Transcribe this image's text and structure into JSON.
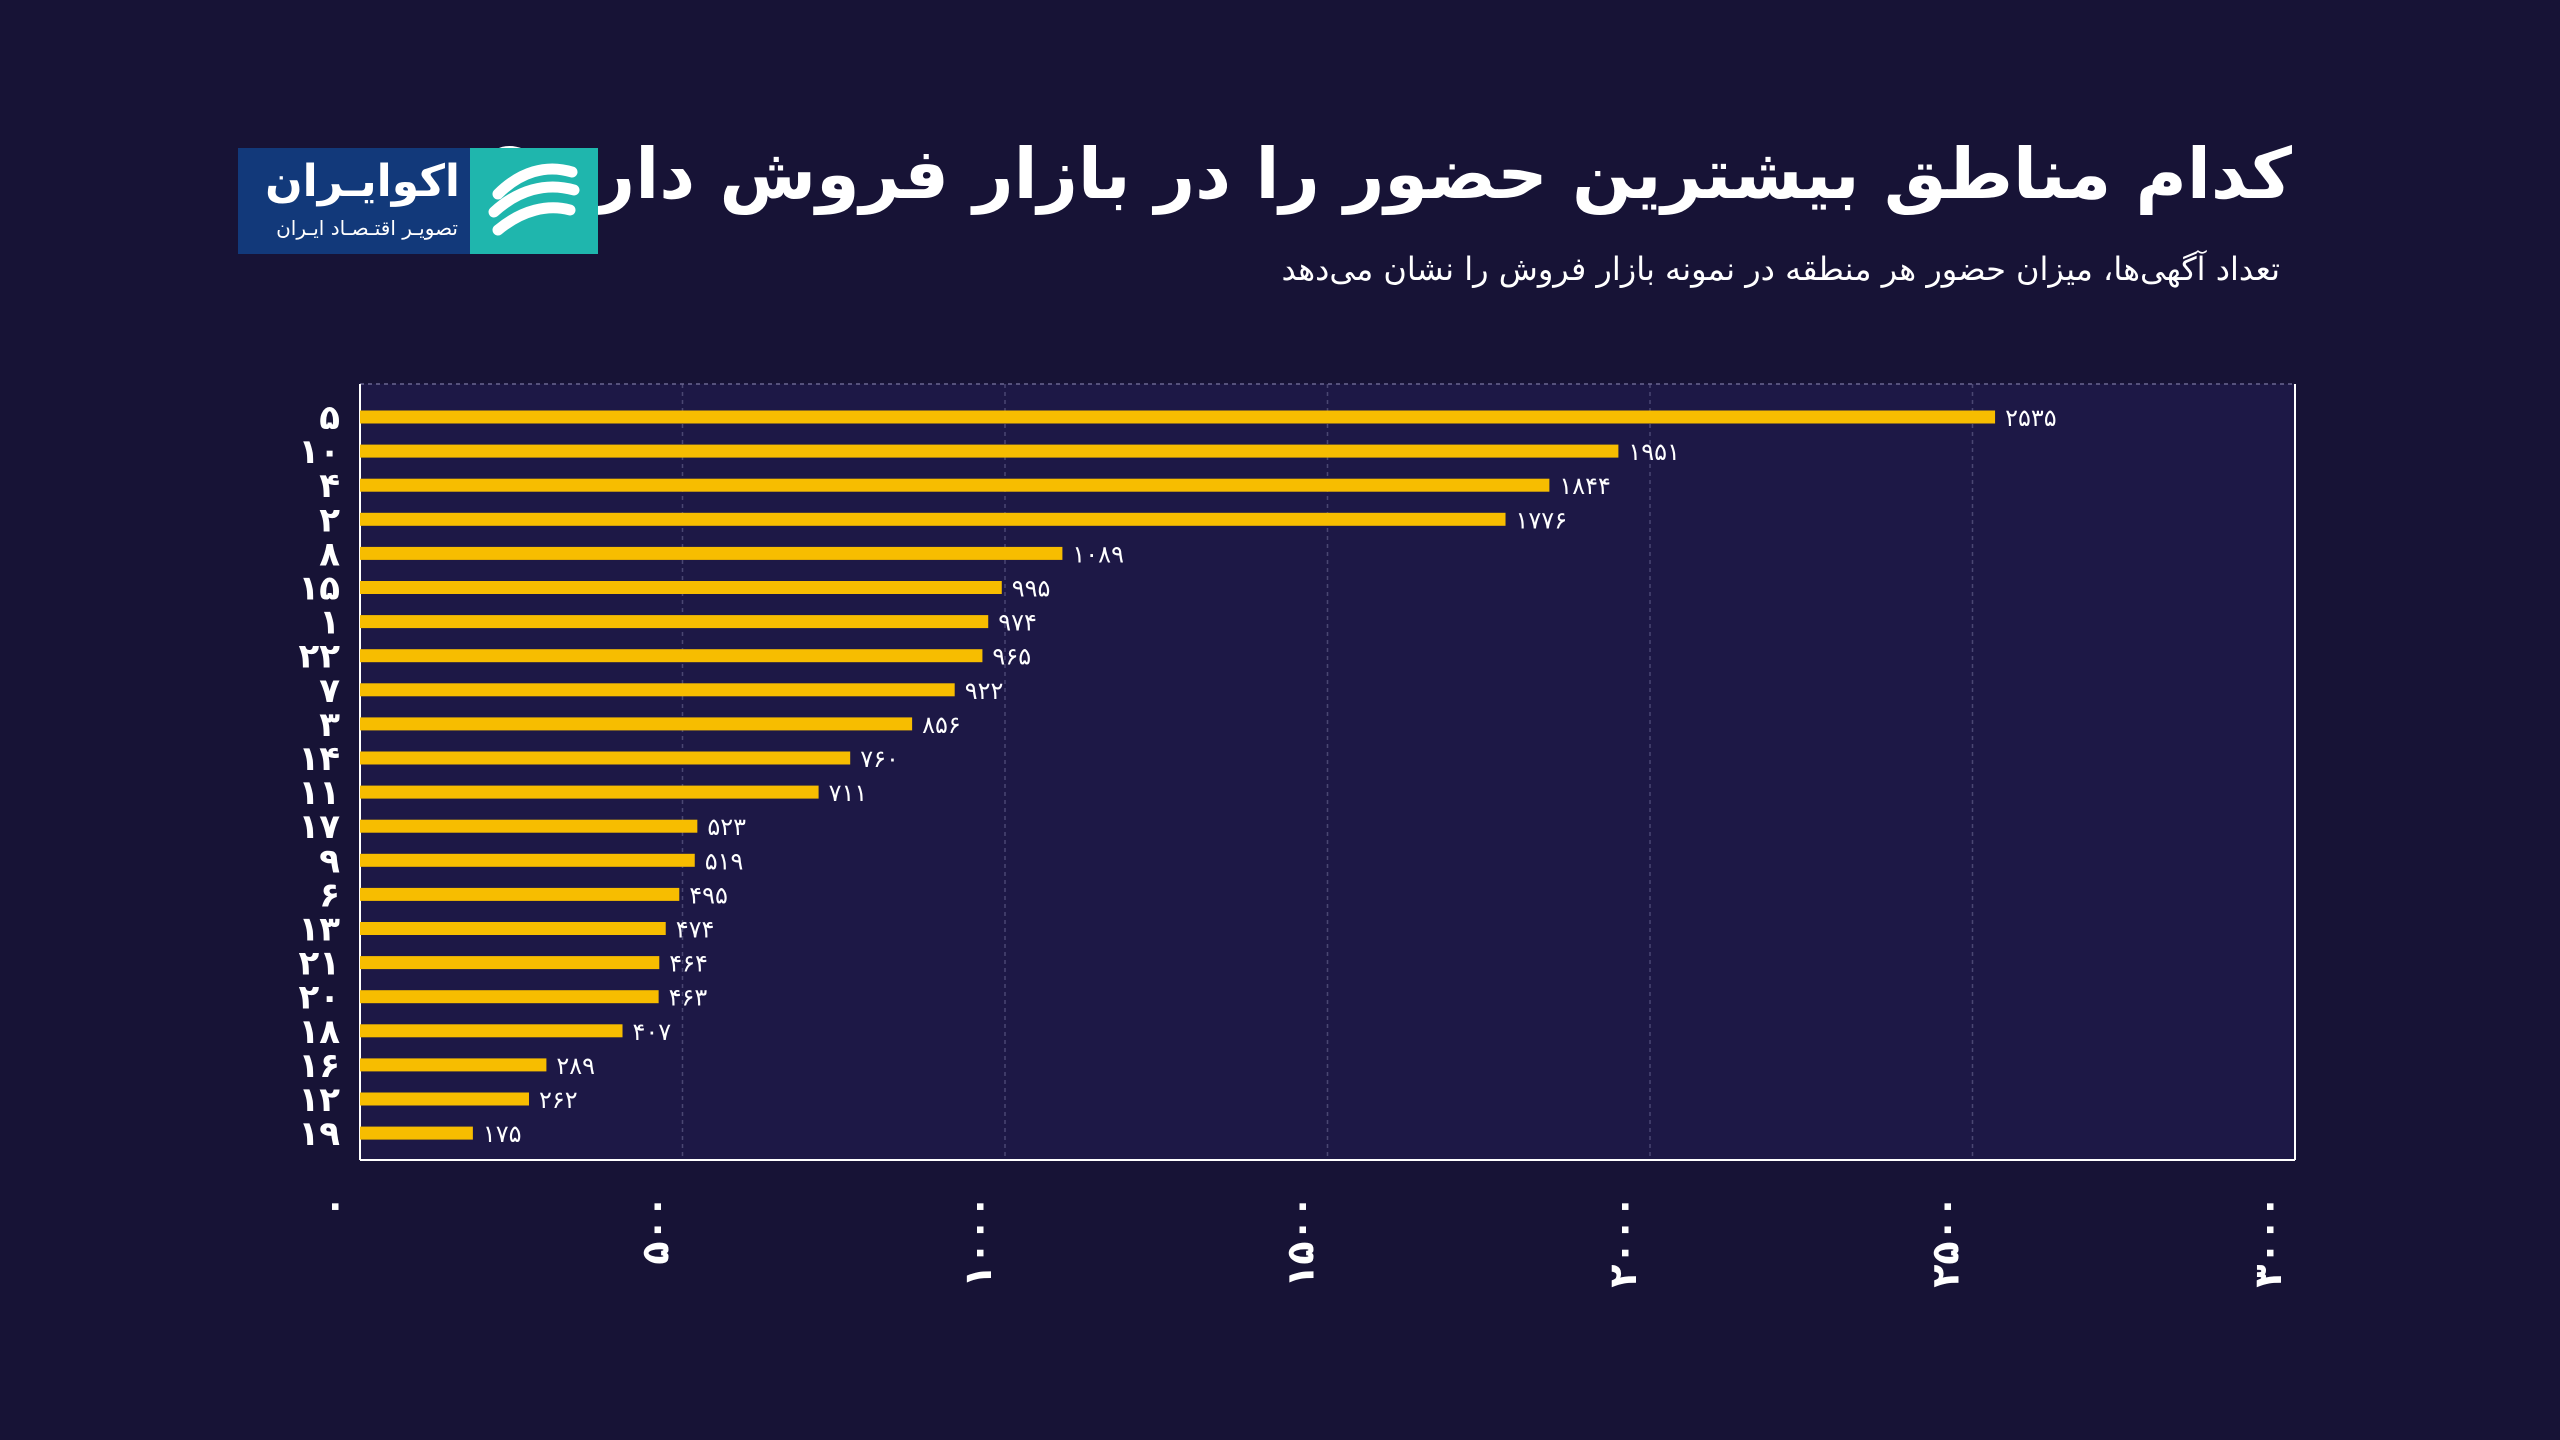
{
  "header": {
    "title": "کدام مناطق بیشترین حضور را در بازار فروش دارند؟",
    "subtitle": "تعداد آگهی‌ها، میزان حضور هر منطقه در نمونه بازار فروش را نشان می‌دهد"
  },
  "logo": {
    "name": "اکوایـران",
    "tagline": "تصویـر اقتـصـاد ایـران",
    "icon": "ecoiran-logo-mark-icon"
  },
  "colors": {
    "background": "#171336",
    "plot_background": "#1d1846",
    "bar": "#f7bd00",
    "logo_blue": "#12397a",
    "logo_teal": "#1fb6ad"
  },
  "chart_data": {
    "type": "bar",
    "orientation": "horizontal",
    "categories": [
      "۵",
      "۱۰",
      "۴",
      "۲",
      "۸",
      "۱۵",
      "۱",
      "۲۲",
      "۷",
      "۳",
      "۱۴",
      "۱۱",
      "۱۷",
      "۹",
      "۶",
      "۱۳",
      "۲۱",
      "۲۰",
      "۱۸",
      "۱۶",
      "۱۲",
      "۱۹"
    ],
    "values": [
      2535,
      1951,
      1844,
      1776,
      1089,
      995,
      974,
      965,
      922,
      856,
      760,
      711,
      523,
      519,
      495,
      474,
      464,
      463,
      407,
      289,
      262,
      175
    ],
    "value_labels": [
      "۲۵۳۵",
      "۱۹۵۱",
      "۱۸۴۴",
      "۱۷۷۶",
      "۱۰۸۹",
      "۹۹۵",
      "۹۷۴",
      "۹۶۵",
      "۹۲۲",
      "۸۵۶",
      "۷۶۰",
      "۷۱۱",
      "۵۲۳",
      "۵۱۹",
      "۴۹۵",
      "۴۷۴",
      "۴۶۴",
      "۴۶۳",
      "۴۰۷",
      "۲۸۹",
      "۲۶۲",
      "۱۷۵"
    ],
    "xlim": [
      0,
      3000
    ],
    "xticks": [
      0,
      500,
      1000,
      1500,
      2000,
      2500,
      3000
    ],
    "xtick_labels": [
      "۰",
      "۵۰۰",
      "۱۰۰۰",
      "۱۵۰۰",
      "۲۰۰۰",
      "۲۵۰۰",
      "۳۰۰۰"
    ],
    "xtick_rotation": "vertical",
    "grid": "vertical dashed",
    "legend": "none",
    "title": "",
    "xlabel": "",
    "ylabel": ""
  }
}
